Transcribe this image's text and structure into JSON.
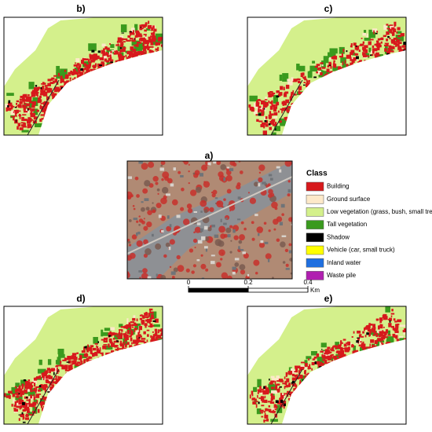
{
  "panels": [
    {
      "label": "b)"
    },
    {
      "label": "c)"
    },
    {
      "label": "a)"
    },
    {
      "label": "d)"
    },
    {
      "label": "e)"
    }
  ],
  "legend": {
    "title": "Class",
    "items": [
      {
        "label": "Building",
        "color": "#d7191c"
      },
      {
        "label": "Ground surface",
        "color": "#fde9c9"
      },
      {
        "label": "Low vegetation (grass, bush, small tres)",
        "color": "#d4f08c"
      },
      {
        "label": "Tall vegetation",
        "color": "#3a9a1e"
      },
      {
        "label": "Shadow",
        "color": "#000000"
      },
      {
        "label": "Vehicle (car, small truck)",
        "color": "#ffff00"
      },
      {
        "label": "Inland water",
        "color": "#1f6fe0"
      },
      {
        "label": "Waste pile",
        "color": "#b01fb0"
      }
    ]
  },
  "scale_bar": {
    "ticks": [
      0,
      0.2,
      0.4
    ],
    "unit": "Km"
  }
}
